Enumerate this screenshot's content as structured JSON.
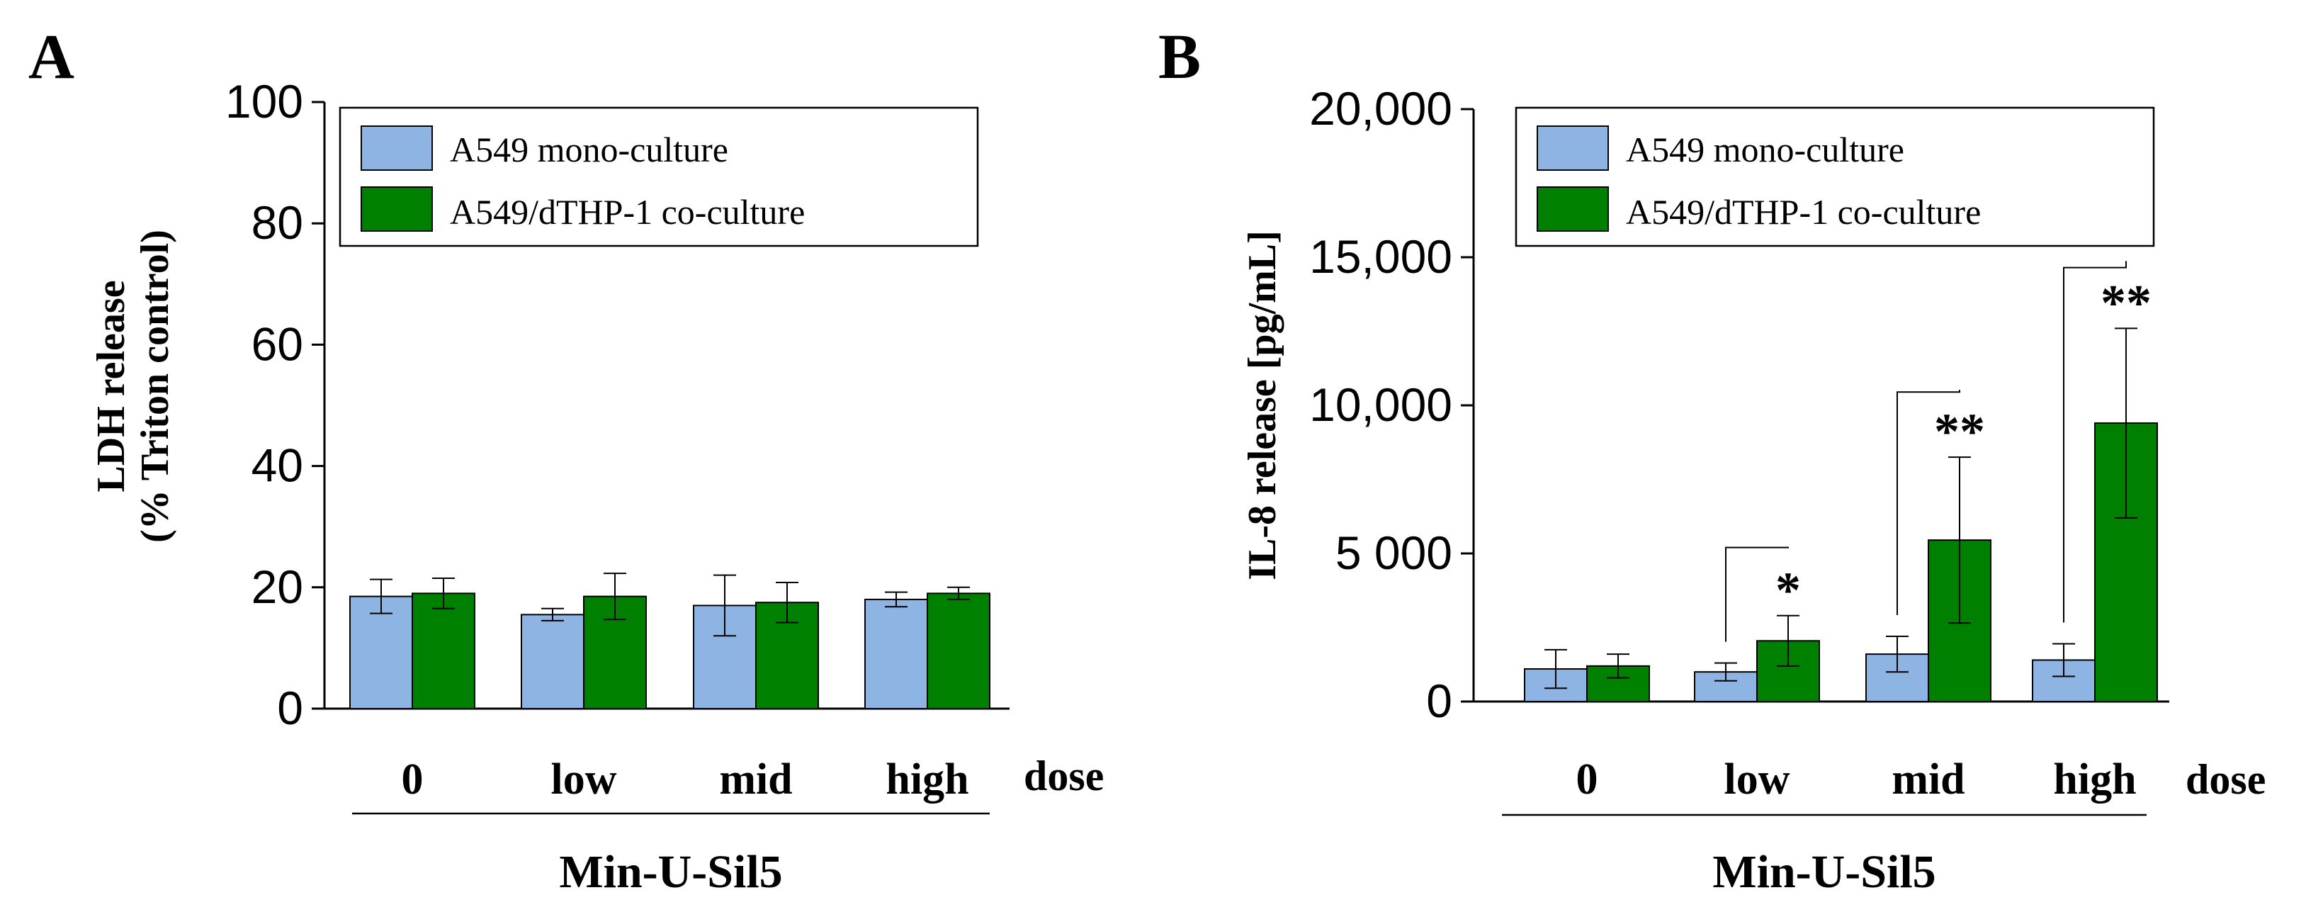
{
  "chart_data": [
    {
      "panel_label": "A",
      "type": "bar",
      "categories": [
        "0",
        "low",
        "mid",
        "high"
      ],
      "axis_end_label": "dose",
      "group_label": "Min-U-Sil5",
      "ylabel_line1": "LDH release",
      "ylabel_line2": "(% Triton control)",
      "ylim": [
        0,
        100
      ],
      "yticks": [
        0,
        20,
        40,
        60,
        80,
        100
      ],
      "ytick_labels": [
        "0",
        "20",
        "40",
        "60",
        "80",
        "100"
      ],
      "series": [
        {
          "name": "A549 mono-culture",
          "color": "#8eb4e3",
          "values": [
            18.5,
            15.5,
            17,
            18
          ],
          "errors": [
            2.8,
            1,
            5,
            1.2
          ]
        },
        {
          "name": "A549/dTHP-1 co-culture",
          "color": "#008000",
          "values": [
            19,
            18.5,
            17.5,
            19
          ],
          "errors": [
            2.5,
            3.8,
            3.3,
            1
          ]
        }
      ],
      "brackets": []
    },
    {
      "panel_label": "B",
      "type": "bar",
      "categories": [
        "0",
        "low",
        "mid",
        "high"
      ],
      "axis_end_label": "dose",
      "group_label": "Min-U-Sil5",
      "ylabel_line1": "IL-8 release [pg/mL]",
      "ylabel_line2": "",
      "ylim": [
        0,
        20000
      ],
      "yticks": [
        0,
        5000,
        10000,
        15000,
        20000
      ],
      "ytick_labels": [
        "0",
        "5 000",
        "10,000",
        "15,000",
        "20,000"
      ],
      "series": [
        {
          "name": "A549 mono-culture",
          "color": "#8eb4e3",
          "values": [
            1100,
            1000,
            1600,
            1400
          ],
          "errors": [
            650,
            300,
            600,
            550
          ]
        },
        {
          "name": "A549/dTHP-1 co-culture",
          "color": "#008000",
          "values": [
            1200,
            2050,
            5450,
            9400
          ],
          "errors": [
            400,
            850,
            2800,
            3200
          ]
        }
      ],
      "brackets": [
        {
          "category_index": 1,
          "label": "*",
          "top": 5200
        },
        {
          "category_index": 2,
          "label": "**",
          "top": 10450
        },
        {
          "category_index": 3,
          "label": "**",
          "top": 14650
        }
      ]
    }
  ]
}
